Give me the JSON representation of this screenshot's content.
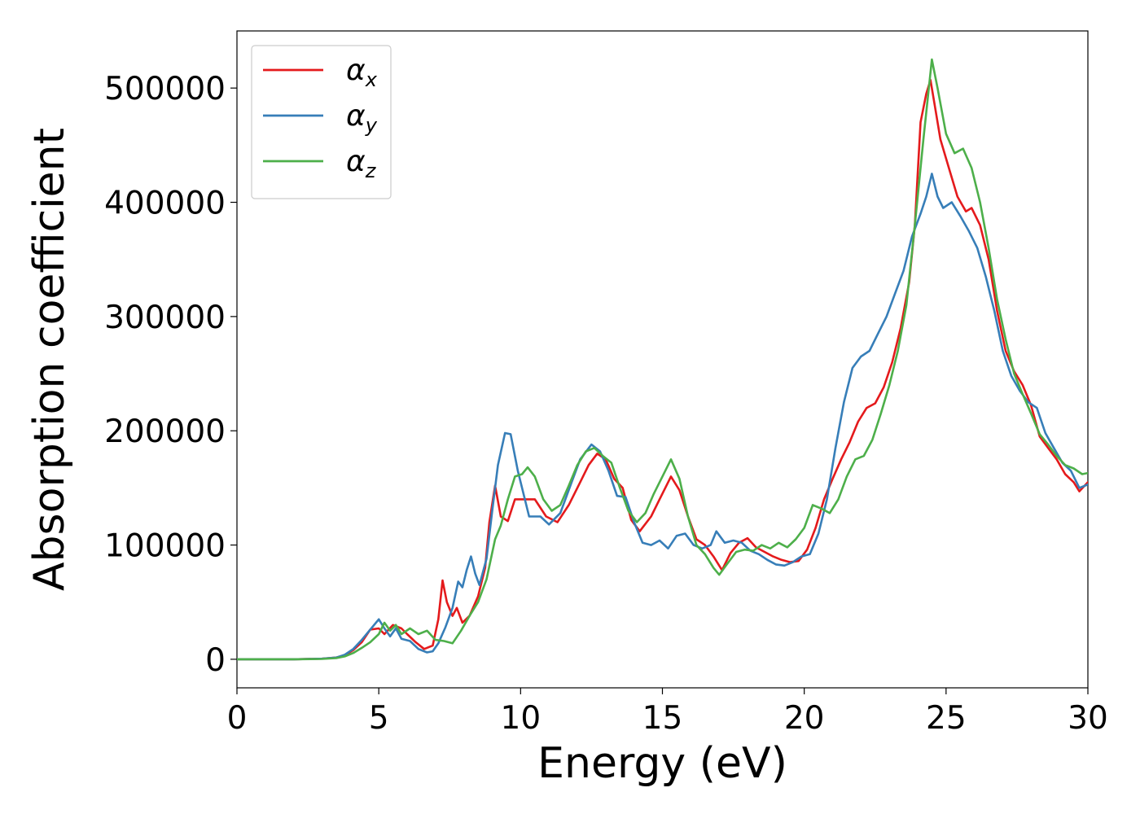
{
  "chart_data": {
    "type": "line",
    "title": "",
    "xlabel": "Energy (eV)",
    "ylabel": "Absorption coefficient",
    "xlim": [
      0,
      30
    ],
    "ylim": [
      -25000,
      550000
    ],
    "xticks": [
      0,
      5,
      10,
      15,
      20,
      25,
      30
    ],
    "yticks": [
      0,
      100000,
      200000,
      300000,
      400000,
      500000
    ],
    "grid": false,
    "legend": "top-left",
    "series": [
      {
        "name": "α",
        "subscript": "x",
        "color": "#e41a1c",
        "points": [
          [
            0,
            0
          ],
          [
            2,
            0
          ],
          [
            3,
            500
          ],
          [
            3.5,
            1500
          ],
          [
            3.8,
            3500
          ],
          [
            4.1,
            8000
          ],
          [
            4.4,
            15000
          ],
          [
            4.7,
            26000
          ],
          [
            5.0,
            27000
          ],
          [
            5.2,
            22000
          ],
          [
            5.5,
            30000
          ],
          [
            5.8,
            27000
          ],
          [
            6.0,
            22000
          ],
          [
            6.3,
            15000
          ],
          [
            6.6,
            9000
          ],
          [
            6.9,
            12000
          ],
          [
            7.1,
            35000
          ],
          [
            7.25,
            69000
          ],
          [
            7.4,
            50000
          ],
          [
            7.6,
            38000
          ],
          [
            7.75,
            45000
          ],
          [
            7.95,
            32000
          ],
          [
            8.2,
            38000
          ],
          [
            8.5,
            55000
          ],
          [
            8.75,
            80000
          ],
          [
            8.9,
            120000
          ],
          [
            9.1,
            152000
          ],
          [
            9.3,
            125000
          ],
          [
            9.55,
            121000
          ],
          [
            9.8,
            140000
          ],
          [
            10.1,
            140000
          ],
          [
            10.5,
            140000
          ],
          [
            10.9,
            125000
          ],
          [
            11.3,
            120000
          ],
          [
            11.7,
            135000
          ],
          [
            12.1,
            155000
          ],
          [
            12.4,
            170000
          ],
          [
            12.7,
            180000
          ],
          [
            13.0,
            175000
          ],
          [
            13.3,
            158000
          ],
          [
            13.6,
            150000
          ],
          [
            13.9,
            122000
          ],
          [
            14.2,
            112000
          ],
          [
            14.6,
            125000
          ],
          [
            14.9,
            140000
          ],
          [
            15.3,
            160000
          ],
          [
            15.6,
            148000
          ],
          [
            15.9,
            125000
          ],
          [
            16.2,
            105000
          ],
          [
            16.5,
            100000
          ],
          [
            16.8,
            90000
          ],
          [
            17.1,
            78000
          ],
          [
            17.4,
            93000
          ],
          [
            17.7,
            102000
          ],
          [
            18.0,
            106000
          ],
          [
            18.3,
            98000
          ],
          [
            18.6,
            94000
          ],
          [
            18.9,
            90000
          ],
          [
            19.2,
            87000
          ],
          [
            19.5,
            85000
          ],
          [
            19.8,
            86000
          ],
          [
            20.1,
            96000
          ],
          [
            20.4,
            115000
          ],
          [
            20.7,
            140000
          ],
          [
            21.0,
            158000
          ],
          [
            21.3,
            175000
          ],
          [
            21.6,
            190000
          ],
          [
            21.9,
            208000
          ],
          [
            22.2,
            220000
          ],
          [
            22.5,
            224000
          ],
          [
            22.8,
            238000
          ],
          [
            23.1,
            260000
          ],
          [
            23.4,
            290000
          ],
          [
            23.7,
            330000
          ],
          [
            23.9,
            380000
          ],
          [
            24.1,
            470000
          ],
          [
            24.3,
            495000
          ],
          [
            24.45,
            507000
          ],
          [
            24.6,
            485000
          ],
          [
            24.8,
            455000
          ],
          [
            25.1,
            430000
          ],
          [
            25.4,
            405000
          ],
          [
            25.7,
            392000
          ],
          [
            25.9,
            395000
          ],
          [
            26.2,
            380000
          ],
          [
            26.5,
            350000
          ],
          [
            26.8,
            305000
          ],
          [
            27.1,
            270000
          ],
          [
            27.4,
            252000
          ],
          [
            27.7,
            240000
          ],
          [
            28.0,
            222000
          ],
          [
            28.3,
            195000
          ],
          [
            28.6,
            185000
          ],
          [
            28.9,
            175000
          ],
          [
            29.2,
            162000
          ],
          [
            29.5,
            155000
          ],
          [
            29.7,
            147000
          ],
          [
            30,
            155000
          ]
        ]
      },
      {
        "name": "α",
        "subscript": "y",
        "color": "#377eb8",
        "points": [
          [
            0,
            0
          ],
          [
            2,
            0
          ],
          [
            3,
            500
          ],
          [
            3.5,
            1500
          ],
          [
            3.8,
            4000
          ],
          [
            4.1,
            9000
          ],
          [
            4.4,
            17000
          ],
          [
            4.7,
            26000
          ],
          [
            5.0,
            35000
          ],
          [
            5.2,
            27000
          ],
          [
            5.4,
            20000
          ],
          [
            5.6,
            27000
          ],
          [
            5.8,
            18000
          ],
          [
            6.1,
            16000
          ],
          [
            6.4,
            9000
          ],
          [
            6.7,
            6000
          ],
          [
            6.9,
            7000
          ],
          [
            7.1,
            14000
          ],
          [
            7.35,
            28000
          ],
          [
            7.6,
            45000
          ],
          [
            7.8,
            68000
          ],
          [
            7.95,
            63000
          ],
          [
            8.1,
            78000
          ],
          [
            8.25,
            90000
          ],
          [
            8.4,
            75000
          ],
          [
            8.55,
            65000
          ],
          [
            8.8,
            88000
          ],
          [
            9.0,
            130000
          ],
          [
            9.2,
            170000
          ],
          [
            9.45,
            198000
          ],
          [
            9.65,
            197000
          ],
          [
            9.9,
            165000
          ],
          [
            10.3,
            125000
          ],
          [
            10.7,
            125000
          ],
          [
            11.0,
            118000
          ],
          [
            11.4,
            128000
          ],
          [
            11.8,
            155000
          ],
          [
            12.1,
            175000
          ],
          [
            12.5,
            188000
          ],
          [
            12.8,
            182000
          ],
          [
            13.1,
            165000
          ],
          [
            13.4,
            143000
          ],
          [
            13.7,
            142000
          ],
          [
            14.0,
            120000
          ],
          [
            14.3,
            102000
          ],
          [
            14.6,
            100000
          ],
          [
            14.9,
            104000
          ],
          [
            15.2,
            97000
          ],
          [
            15.5,
            108000
          ],
          [
            15.8,
            110000
          ],
          [
            16.1,
            100000
          ],
          [
            16.4,
            97000
          ],
          [
            16.7,
            100000
          ],
          [
            16.9,
            112000
          ],
          [
            17.2,
            102000
          ],
          [
            17.5,
            104000
          ],
          [
            17.8,
            102000
          ],
          [
            18.1,
            95000
          ],
          [
            18.4,
            92000
          ],
          [
            18.7,
            87000
          ],
          [
            19.0,
            83000
          ],
          [
            19.3,
            82000
          ],
          [
            19.6,
            85000
          ],
          [
            19.9,
            90000
          ],
          [
            20.2,
            92000
          ],
          [
            20.5,
            110000
          ],
          [
            20.8,
            140000
          ],
          [
            21.1,
            185000
          ],
          [
            21.4,
            225000
          ],
          [
            21.7,
            255000
          ],
          [
            22.0,
            265000
          ],
          [
            22.3,
            270000
          ],
          [
            22.6,
            285000
          ],
          [
            22.9,
            300000
          ],
          [
            23.2,
            320000
          ],
          [
            23.5,
            340000
          ],
          [
            23.8,
            370000
          ],
          [
            24.1,
            390000
          ],
          [
            24.3,
            405000
          ],
          [
            24.5,
            425000
          ],
          [
            24.7,
            405000
          ],
          [
            24.9,
            395000
          ],
          [
            25.2,
            400000
          ],
          [
            25.5,
            388000
          ],
          [
            25.8,
            375000
          ],
          [
            26.1,
            360000
          ],
          [
            26.4,
            335000
          ],
          [
            26.7,
            305000
          ],
          [
            27.0,
            270000
          ],
          [
            27.3,
            248000
          ],
          [
            27.6,
            235000
          ],
          [
            27.9,
            225000
          ],
          [
            28.2,
            220000
          ],
          [
            28.5,
            198000
          ],
          [
            28.8,
            185000
          ],
          [
            29.1,
            172000
          ],
          [
            29.4,
            165000
          ],
          [
            29.7,
            150000
          ],
          [
            30,
            153000
          ]
        ]
      },
      {
        "name": "α",
        "subscript": "z",
        "color": "#4daf4a",
        "points": [
          [
            0,
            0
          ],
          [
            2,
            0
          ],
          [
            3,
            300
          ],
          [
            3.5,
            1000
          ],
          [
            3.8,
            2500
          ],
          [
            4.1,
            5500
          ],
          [
            4.4,
            10000
          ],
          [
            4.7,
            15000
          ],
          [
            5.0,
            22000
          ],
          [
            5.2,
            32000
          ],
          [
            5.4,
            25000
          ],
          [
            5.6,
            30000
          ],
          [
            5.8,
            22000
          ],
          [
            6.1,
            27000
          ],
          [
            6.4,
            22000
          ],
          [
            6.7,
            25000
          ],
          [
            7.0,
            17000
          ],
          [
            7.3,
            16000
          ],
          [
            7.6,
            14000
          ],
          [
            7.9,
            25000
          ],
          [
            8.2,
            38000
          ],
          [
            8.5,
            50000
          ],
          [
            8.8,
            70000
          ],
          [
            9.1,
            105000
          ],
          [
            9.3,
            117000
          ],
          [
            9.55,
            140000
          ],
          [
            9.8,
            160000
          ],
          [
            10.05,
            162000
          ],
          [
            10.25,
            168000
          ],
          [
            10.5,
            160000
          ],
          [
            10.8,
            140000
          ],
          [
            11.1,
            130000
          ],
          [
            11.4,
            135000
          ],
          [
            11.7,
            152000
          ],
          [
            12.0,
            170000
          ],
          [
            12.3,
            182000
          ],
          [
            12.6,
            185000
          ],
          [
            12.9,
            178000
          ],
          [
            13.2,
            172000
          ],
          [
            13.5,
            150000
          ],
          [
            13.8,
            130000
          ],
          [
            14.1,
            120000
          ],
          [
            14.4,
            128000
          ],
          [
            14.7,
            145000
          ],
          [
            15.0,
            160000
          ],
          [
            15.3,
            175000
          ],
          [
            15.6,
            158000
          ],
          [
            15.9,
            125000
          ],
          [
            16.2,
            100000
          ],
          [
            16.5,
            92000
          ],
          [
            16.8,
            80000
          ],
          [
            17.0,
            74000
          ],
          [
            17.3,
            84000
          ],
          [
            17.6,
            94000
          ],
          [
            17.9,
            96000
          ],
          [
            18.2,
            95000
          ],
          [
            18.5,
            100000
          ],
          [
            18.8,
            97000
          ],
          [
            19.1,
            102000
          ],
          [
            19.4,
            98000
          ],
          [
            19.7,
            105000
          ],
          [
            20.0,
            115000
          ],
          [
            20.3,
            135000
          ],
          [
            20.6,
            132000
          ],
          [
            20.9,
            128000
          ],
          [
            21.2,
            140000
          ],
          [
            21.5,
            160000
          ],
          [
            21.8,
            175000
          ],
          [
            22.1,
            178000
          ],
          [
            22.4,
            192000
          ],
          [
            22.7,
            215000
          ],
          [
            23.0,
            240000
          ],
          [
            23.3,
            270000
          ],
          [
            23.6,
            310000
          ],
          [
            23.9,
            380000
          ],
          [
            24.2,
            455000
          ],
          [
            24.5,
            525000
          ],
          [
            24.7,
            500000
          ],
          [
            25.0,
            460000
          ],
          [
            25.3,
            443000
          ],
          [
            25.6,
            447000
          ],
          [
            25.9,
            430000
          ],
          [
            26.2,
            400000
          ],
          [
            26.5,
            360000
          ],
          [
            26.8,
            315000
          ],
          [
            27.1,
            280000
          ],
          [
            27.4,
            250000
          ],
          [
            27.7,
            232000
          ],
          [
            28.0,
            215000
          ],
          [
            28.3,
            197000
          ],
          [
            28.6,
            188000
          ],
          [
            28.9,
            178000
          ],
          [
            29.2,
            170000
          ],
          [
            29.5,
            167000
          ],
          [
            29.8,
            162000
          ],
          [
            30,
            163000
          ]
        ]
      }
    ]
  }
}
